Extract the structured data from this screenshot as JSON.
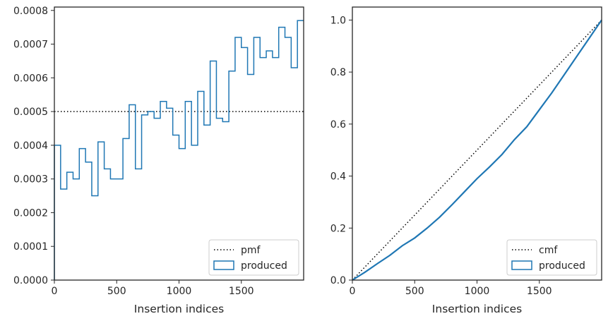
{
  "chart_data": [
    {
      "type": "step",
      "xlabel": "Insertion indices",
      "ylabel": "",
      "xlim": [
        0,
        2000
      ],
      "ylim": [
        0,
        0.00081
      ],
      "xticks": [
        0,
        500,
        1000,
        1500
      ],
      "xtick_labels": [
        "0",
        "500",
        "1000",
        "1500"
      ],
      "yticks": [
        0,
        0.0001,
        0.0002,
        0.0003,
        0.0004,
        0.0005,
        0.0006,
        0.0007,
        0.0008
      ],
      "ytick_labels": [
        "0.0000",
        "0.0001",
        "0.0002",
        "0.0003",
        "0.0004",
        "0.0005",
        "0.0006",
        "0.0007",
        "0.0008"
      ],
      "legend_position": "lower-right",
      "series": [
        {
          "name": "pmf",
          "style": "dotted",
          "color": "#000000",
          "x": [
            0,
            2000
          ],
          "y": [
            0.0005,
            0.0005
          ]
        },
        {
          "name": "produced",
          "style": "step-histogram",
          "color": "#1f77b4",
          "bin_edges": [
            0,
            50,
            100,
            150,
            200,
            250,
            300,
            350,
            400,
            450,
            500,
            550,
            600,
            650,
            700,
            750,
            800,
            850,
            900,
            950,
            1000,
            1050,
            1100,
            1150,
            1200,
            1250,
            1300,
            1350,
            1400,
            1450,
            1500,
            1550,
            1600,
            1650,
            1700,
            1750,
            1800,
            1850,
            1900,
            1950,
            2000
          ],
          "values": [
            0.0004,
            0.00027,
            0.00032,
            0.0003,
            0.00039,
            0.00035,
            0.00025,
            0.00041,
            0.00033,
            0.0003,
            0.0003,
            0.00042,
            0.00052,
            0.00033,
            0.00049,
            0.0005,
            0.00048,
            0.00053,
            0.00051,
            0.00043,
            0.00039,
            0.00053,
            0.0004,
            0.00056,
            0.00046,
            0.00065,
            0.00048,
            0.00047,
            0.00062,
            0.00072,
            0.00069,
            0.00061,
            0.00072,
            0.00066,
            0.00068,
            0.00066,
            0.00075,
            0.00072,
            0.00063,
            0.00077
          ]
        }
      ]
    },
    {
      "type": "line",
      "xlabel": "Insertion indices",
      "ylabel": "",
      "xlim": [
        0,
        2000
      ],
      "ylim": [
        0,
        1.05
      ],
      "xticks": [
        0,
        500,
        1000,
        1500
      ],
      "xtick_labels": [
        "0",
        "500",
        "1000",
        "1500"
      ],
      "yticks": [
        0,
        0.2,
        0.4,
        0.6,
        0.8,
        1.0
      ],
      "ytick_labels": [
        "0.0",
        "0.2",
        "0.4",
        "0.6",
        "0.8",
        "1.0"
      ],
      "legend_position": "lower-right",
      "series": [
        {
          "name": "cmf",
          "style": "dotted",
          "color": "#000000",
          "x": [
            0,
            2000
          ],
          "y": [
            0,
            1.0
          ]
        },
        {
          "name": "produced",
          "style": "solid",
          "color": "#1f77b4",
          "x": [
            0,
            100,
            200,
            300,
            400,
            500,
            600,
            700,
            800,
            900,
            1000,
            1100,
            1200,
            1300,
            1400,
            1500,
            1600,
            1700,
            1800,
            1900,
            2000
          ],
          "y": [
            0,
            0.03,
            0.063,
            0.095,
            0.132,
            0.162,
            0.2,
            0.242,
            0.29,
            0.34,
            0.39,
            0.435,
            0.483,
            0.54,
            0.59,
            0.655,
            0.72,
            0.79,
            0.86,
            0.93,
            1.0
          ]
        }
      ]
    }
  ]
}
